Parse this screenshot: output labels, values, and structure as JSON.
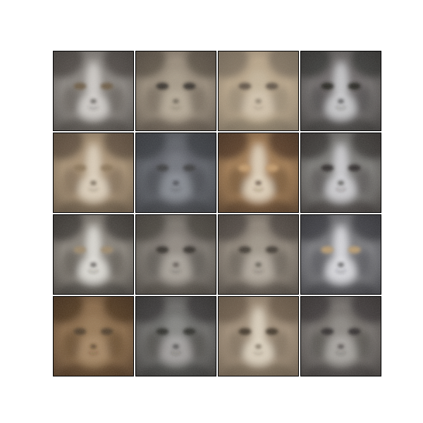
{
  "figure": {
    "background": "#ffffff",
    "grid_rows": 4,
    "grid_cols": 4,
    "tiles": [
      {
        "subject": "cat-face",
        "base": "#8a8580",
        "dark": "#3a3632",
        "light": "#d9d6d2",
        "eye": "#6b5a40",
        "pattern": "blaze"
      },
      {
        "subject": "cat-face",
        "base": "#9a8d7c",
        "dark": "#4a4138",
        "light": "#c8bca8",
        "eye": "#2e2a24",
        "pattern": "plain"
      },
      {
        "subject": "cat-face",
        "base": "#b9a68a",
        "dark": "#6e6252",
        "light": "#e2d6c2",
        "eye": "#5a4e40",
        "pattern": "plain"
      },
      {
        "subject": "cat-face",
        "base": "#6f6c6a",
        "dark": "#2a2826",
        "light": "#d4d4d6",
        "eye": "#1e1c1a",
        "pattern": "blaze"
      },
      {
        "subject": "cat-face",
        "base": "#a89275",
        "dark": "#4d3f30",
        "light": "#e4d8c6",
        "eye": "#8a7456",
        "pattern": "blaze"
      },
      {
        "subject": "cat-face",
        "base": "#5f6268",
        "dark": "#2f3034",
        "light": "#9ea3ab",
        "eye": "#3a3a3a",
        "pattern": "plain"
      },
      {
        "subject": "cat-face",
        "base": "#a27b52",
        "dark": "#3e2a1a",
        "light": "#e8dcc8",
        "eye": "#c8a070",
        "pattern": "blaze"
      },
      {
        "subject": "cat-face",
        "base": "#7d7b78",
        "dark": "#2b2624",
        "light": "#d8d8dc",
        "eye": "#2a2624",
        "pattern": "blaze"
      },
      {
        "subject": "cat-face",
        "base": "#8a847c",
        "dark": "#2e2a26",
        "light": "#e8e6e2",
        "eye": "#a08a6a",
        "pattern": "blaze"
      },
      {
        "subject": "cat-face",
        "base": "#7c766e",
        "dark": "#3a3530",
        "light": "#c4beb4",
        "eye": "#2e2a24",
        "pattern": "plain"
      },
      {
        "subject": "cat-face",
        "base": "#8e8478",
        "dark": "#3c3630",
        "light": "#c8c0b4",
        "eye": "#3a342c",
        "pattern": "plain"
      },
      {
        "subject": "cat-face",
        "base": "#7a7a7e",
        "dark": "#2c2c30",
        "light": "#e6e6ea",
        "eye": "#c0a070",
        "pattern": "blaze"
      },
      {
        "subject": "cat-face",
        "base": "#8a6a48",
        "dark": "#3a2616",
        "light": "#b89a78",
        "eye": "#4a3a28",
        "pattern": "plain"
      },
      {
        "subject": "cat-face",
        "base": "#6c6a68",
        "dark": "#2a2826",
        "light": "#c4c2c0",
        "eye": "#2a2826",
        "pattern": "plain"
      },
      {
        "subject": "cat-face",
        "base": "#a08e78",
        "dark": "#5a4c3c",
        "light": "#e4dac8",
        "eye": "#3a3026",
        "pattern": "blaze"
      },
      {
        "subject": "cat-face",
        "base": "#74706c",
        "dark": "#2e2a28",
        "light": "#c8c4c0",
        "eye": "#2e2a28",
        "pattern": "plain"
      }
    ]
  }
}
